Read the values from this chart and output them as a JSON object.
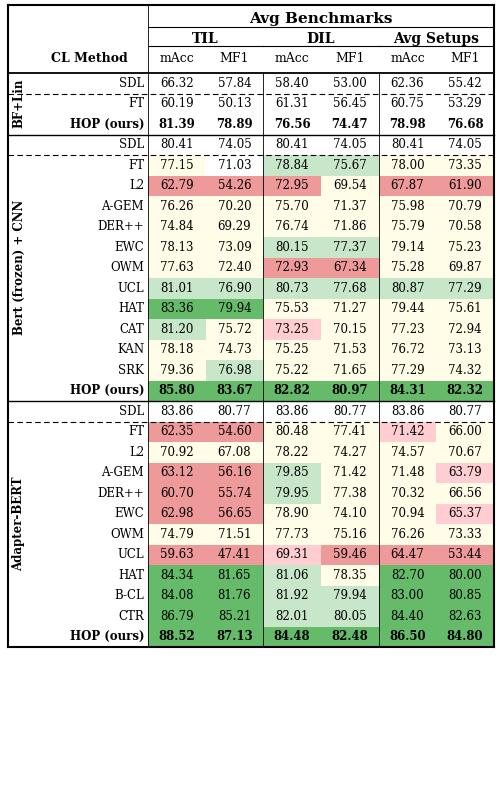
{
  "title": "Avg Benchmarks",
  "sections": [
    {
      "label": "BF+Lin",
      "rows": [
        {
          "method": "SDL",
          "values": [
            66.32,
            57.84,
            58.4,
            53.0,
            62.36,
            55.42
          ],
          "bold": false,
          "dashed": false,
          "bg": [
            null,
            null,
            null,
            null,
            null,
            null
          ]
        },
        {
          "method": "FT",
          "values": [
            60.19,
            50.13,
            61.31,
            56.45,
            60.75,
            53.29
          ],
          "bold": false,
          "dashed": true,
          "bg": [
            null,
            null,
            null,
            null,
            null,
            null
          ]
        },
        {
          "method": "HOP (ours)",
          "values": [
            81.39,
            78.89,
            76.56,
            74.47,
            78.98,
            76.68
          ],
          "bold": true,
          "dashed": false,
          "bg": [
            null,
            null,
            null,
            null,
            null,
            null
          ]
        }
      ]
    },
    {
      "label": "Bert (frozen) + CNN",
      "rows": [
        {
          "method": "SDL",
          "values": [
            80.41,
            74.05,
            80.41,
            74.05,
            80.41,
            74.05
          ],
          "bold": false,
          "dashed": false,
          "bg": [
            null,
            null,
            null,
            null,
            null,
            null
          ]
        },
        {
          "method": "FT",
          "values": [
            77.15,
            71.03,
            78.84,
            75.67,
            78.0,
            73.35
          ],
          "bold": false,
          "dashed": true,
          "bg": [
            "yellow",
            null,
            "green_light",
            "green_light",
            "yellow",
            "yellow"
          ]
        },
        {
          "method": "L2",
          "values": [
            62.79,
            54.26,
            72.95,
            69.54,
            67.87,
            61.9
          ],
          "bold": false,
          "dashed": false,
          "bg": [
            "red",
            "red",
            "red",
            "yellow",
            "red",
            "red"
          ]
        },
        {
          "method": "A-GEM",
          "values": [
            76.26,
            70.2,
            75.7,
            71.37,
            75.98,
            70.79
          ],
          "bold": false,
          "dashed": false,
          "bg": [
            "yellow",
            "yellow",
            "yellow",
            "yellow",
            "yellow",
            "yellow"
          ]
        },
        {
          "method": "DER++",
          "values": [
            74.84,
            69.29,
            76.74,
            71.86,
            75.79,
            70.58
          ],
          "bold": false,
          "dashed": false,
          "bg": [
            "yellow",
            "yellow",
            "yellow",
            "yellow",
            "yellow",
            "yellow"
          ]
        },
        {
          "method": "EWC",
          "values": [
            78.13,
            73.09,
            80.15,
            77.37,
            79.14,
            75.23
          ],
          "bold": false,
          "dashed": false,
          "bg": [
            "yellow",
            "yellow",
            "green_light",
            "green_light",
            "yellow",
            "yellow"
          ]
        },
        {
          "method": "OWM",
          "values": [
            77.63,
            72.4,
            72.93,
            67.34,
            75.28,
            69.87
          ],
          "bold": false,
          "dashed": false,
          "bg": [
            "yellow",
            "yellow",
            "red",
            "red",
            "yellow",
            "yellow"
          ]
        },
        {
          "method": "UCL",
          "values": [
            81.01,
            76.9,
            80.73,
            77.68,
            80.87,
            77.29
          ],
          "bold": false,
          "dashed": false,
          "bg": [
            "green_light",
            "green_light",
            "green_light",
            "green_light",
            "green_light",
            "green_light"
          ]
        },
        {
          "method": "HAT",
          "values": [
            83.36,
            79.94,
            75.53,
            71.27,
            79.44,
            75.61
          ],
          "bold": false,
          "dashed": false,
          "bg": [
            "green",
            "green",
            "yellow",
            "yellow",
            "yellow",
            "yellow"
          ]
        },
        {
          "method": "CAT",
          "values": [
            81.2,
            75.72,
            73.25,
            70.15,
            77.23,
            72.94
          ],
          "bold": false,
          "dashed": false,
          "bg": [
            "green_light",
            "yellow",
            "red_light",
            "yellow",
            "yellow",
            "yellow"
          ]
        },
        {
          "method": "KAN",
          "values": [
            78.18,
            74.73,
            75.25,
            71.53,
            76.72,
            73.13
          ],
          "bold": false,
          "dashed": false,
          "bg": [
            "yellow",
            "yellow",
            "yellow",
            "yellow",
            "yellow",
            "yellow"
          ]
        },
        {
          "method": "SRK",
          "values": [
            79.36,
            76.98,
            75.22,
            71.65,
            77.29,
            74.32
          ],
          "bold": false,
          "dashed": false,
          "bg": [
            "yellow",
            "green_light",
            "yellow",
            "yellow",
            "yellow",
            "yellow"
          ]
        },
        {
          "method": "HOP (ours)",
          "values": [
            85.8,
            83.67,
            82.82,
            80.97,
            84.31,
            82.32
          ],
          "bold": true,
          "dashed": false,
          "bg": [
            "green",
            "green",
            "green",
            "green",
            "green",
            "green"
          ]
        }
      ]
    },
    {
      "label": "Adapter-BERT",
      "rows": [
        {
          "method": "SDL",
          "values": [
            83.86,
            80.77,
            83.86,
            80.77,
            83.86,
            80.77
          ],
          "bold": false,
          "dashed": false,
          "bg": [
            null,
            null,
            null,
            null,
            null,
            null
          ]
        },
        {
          "method": "FT",
          "values": [
            62.35,
            54.6,
            80.48,
            77.41,
            71.42,
            66.0
          ],
          "bold": false,
          "dashed": true,
          "bg": [
            "red",
            "red",
            "yellow",
            "yellow",
            "red_light",
            "yellow"
          ]
        },
        {
          "method": "L2",
          "values": [
            70.92,
            67.08,
            78.22,
            74.27,
            74.57,
            70.67
          ],
          "bold": false,
          "dashed": false,
          "bg": [
            "yellow",
            "yellow",
            "yellow",
            "yellow",
            "yellow",
            "yellow"
          ]
        },
        {
          "method": "A-GEM",
          "values": [
            63.12,
            56.16,
            79.85,
            71.42,
            71.48,
            63.79
          ],
          "bold": false,
          "dashed": false,
          "bg": [
            "red",
            "red",
            "green_light",
            "yellow",
            "yellow",
            "red_light"
          ]
        },
        {
          "method": "DER++",
          "values": [
            60.7,
            55.74,
            79.95,
            77.38,
            70.32,
            66.56
          ],
          "bold": false,
          "dashed": false,
          "bg": [
            "red",
            "red",
            "green_light",
            "yellow",
            "yellow",
            "yellow"
          ]
        },
        {
          "method": "EWC",
          "values": [
            62.98,
            56.65,
            78.9,
            74.1,
            70.94,
            65.37
          ],
          "bold": false,
          "dashed": false,
          "bg": [
            "red",
            "red",
            "yellow",
            "yellow",
            "yellow",
            "red_light"
          ]
        },
        {
          "method": "OWM",
          "values": [
            74.79,
            71.51,
            77.73,
            75.16,
            76.26,
            73.33
          ],
          "bold": false,
          "dashed": false,
          "bg": [
            "yellow",
            "yellow",
            "yellow",
            "yellow",
            "yellow",
            "yellow"
          ]
        },
        {
          "method": "UCL",
          "values": [
            59.63,
            47.41,
            69.31,
            59.46,
            64.47,
            53.44
          ],
          "bold": false,
          "dashed": false,
          "bg": [
            "red",
            "red",
            "red_light",
            "red",
            "red",
            "red"
          ]
        },
        {
          "method": "HAT",
          "values": [
            84.34,
            81.65,
            81.06,
            78.35,
            82.7,
            80.0
          ],
          "bold": false,
          "dashed": false,
          "bg": [
            "green",
            "green",
            "green_light",
            "yellow",
            "green",
            "green"
          ]
        },
        {
          "method": "B-CL",
          "values": [
            84.08,
            81.76,
            81.92,
            79.94,
            83.0,
            80.85
          ],
          "bold": false,
          "dashed": false,
          "bg": [
            "green",
            "green",
            "green_light",
            "green_light",
            "green",
            "green"
          ]
        },
        {
          "method": "CTR",
          "values": [
            86.79,
            85.21,
            82.01,
            80.05,
            84.4,
            82.63
          ],
          "bold": false,
          "dashed": false,
          "bg": [
            "green",
            "green",
            "green_light",
            "green_light",
            "green",
            "green"
          ]
        },
        {
          "method": "HOP (ours)",
          "values": [
            88.52,
            87.13,
            84.48,
            82.48,
            86.5,
            84.8
          ],
          "bold": true,
          "dashed": false,
          "bg": [
            "green",
            "green",
            "green",
            "green",
            "green",
            "green"
          ]
        }
      ]
    }
  ],
  "color_map": {
    "green": "#66bb6a",
    "green_light": "#c8e6c9",
    "yellow": "#fffde7",
    "red_light": "#ffcdd2",
    "red": "#ef9a9a",
    "null": "#ffffff"
  },
  "figsize": [
    5.0,
    7.88
  ],
  "dpi": 100
}
